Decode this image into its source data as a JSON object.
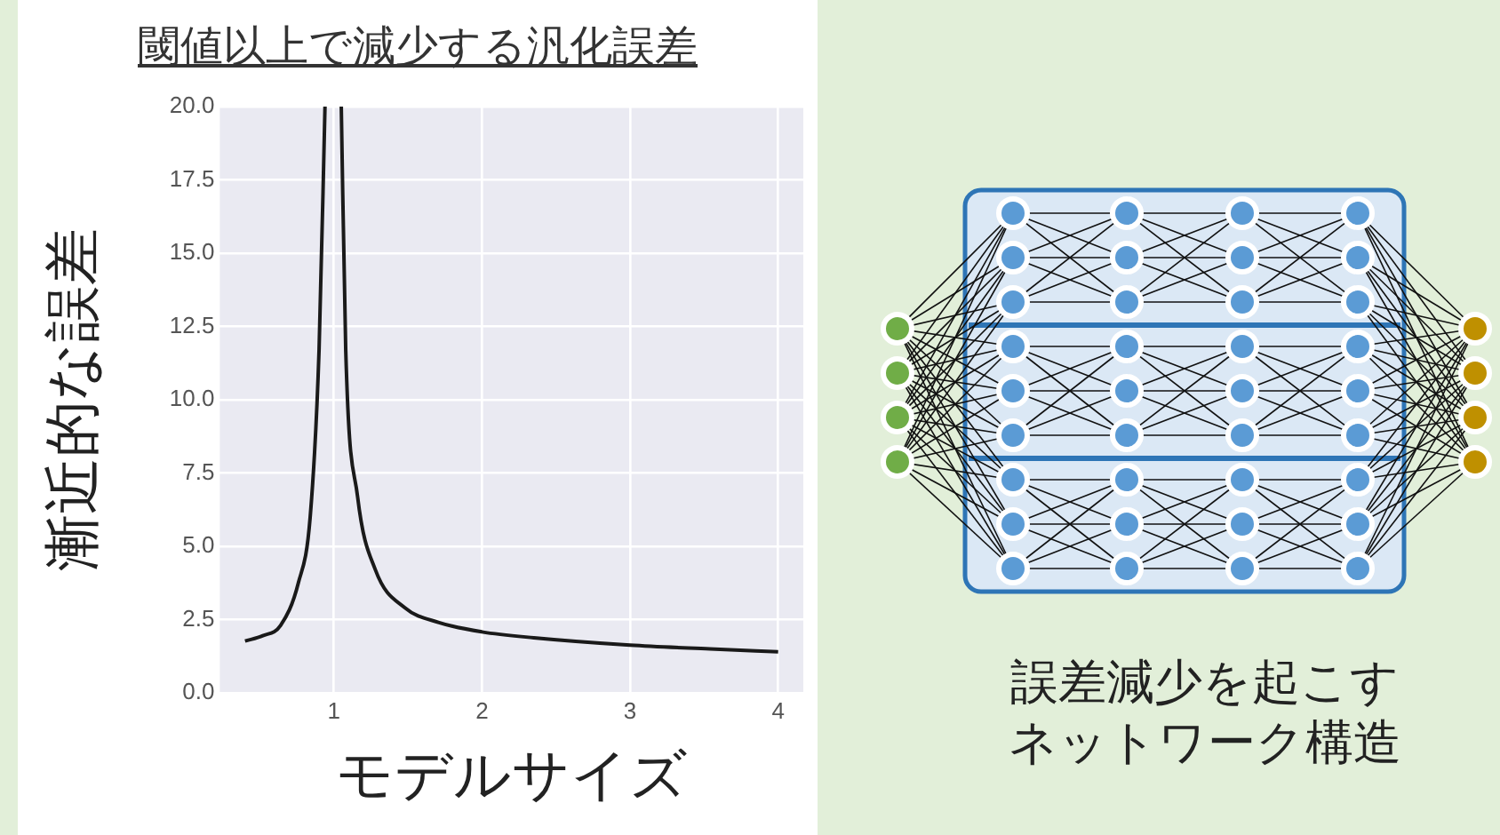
{
  "chart_data": {
    "type": "line",
    "title": "閾値以上で減少する汎化誤差",
    "xlabel": "モデルサイズ",
    "ylabel": "漸近的な誤差",
    "x": [
      0.4,
      0.52,
      0.64,
      0.76,
      0.84,
      0.9,
      0.94,
      0.97,
      1.05,
      1.08,
      1.16,
      1.28,
      1.48,
      1.71,
      2,
      2.35,
      3,
      3.54,
      4
    ],
    "series": [
      {
        "color": "#1a1a1a",
        "values": [
          1.77,
          1.95,
          2.3,
          3.75,
          6.0,
          11.7,
          20,
          null,
          20,
          11.7,
          6.7,
          4.2,
          2.9,
          2.4,
          2.08,
          1.88,
          1.63,
          1.5,
          1.4
        ]
      }
    ],
    "xlim": [
      0.23,
      4.17
    ],
    "xticks": [
      1,
      2,
      3,
      4
    ],
    "ylim": [
      0,
      20
    ],
    "yticks": [
      {
        "value": 0,
        "label": "0.0"
      },
      {
        "value": 2.5,
        "label": "2.5"
      },
      {
        "value": 5,
        "label": "5.0"
      },
      {
        "value": 7.5,
        "label": "7.5"
      },
      {
        "value": 10,
        "label": "10.0"
      },
      {
        "value": 12.5,
        "label": "12.5"
      },
      {
        "value": 15,
        "label": "15.0"
      },
      {
        "value": 17.5,
        "label": "17.5"
      },
      {
        "value": 20,
        "label": "20.0"
      }
    ],
    "grid": true,
    "legend": false,
    "marker": "none",
    "line_style": "solid",
    "annotations": [
      "誤差減少を起こすネットワーク構造"
    ]
  }
}
